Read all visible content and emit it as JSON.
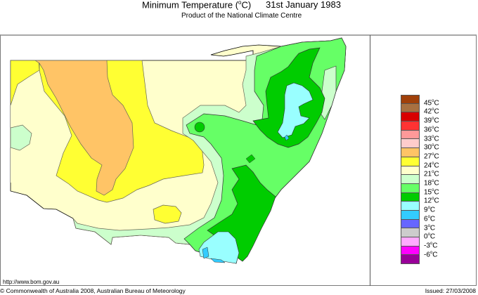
{
  "header": {
    "title_prefix": "Minimum Temperature (",
    "title_degree": "o",
    "title_suffix": "C)",
    "date": "31st January 1983",
    "subtitle": "Product of the National Climate Centre"
  },
  "map": {
    "region": "New South Wales",
    "variable": "Minimum Temperature",
    "unit": "°C"
  },
  "legend": {
    "swatches": [
      {
        "color": "#a0400a",
        "range": "above 45"
      },
      {
        "color": "#a87040",
        "range": "42-45"
      },
      {
        "color": "#d80000",
        "range": "39-42"
      },
      {
        "color": "#ff3333",
        "range": "36-39"
      },
      {
        "color": "#ff9999",
        "range": "33-36"
      },
      {
        "color": "#ffcccc",
        "range": "30-33"
      },
      {
        "color": "#ffc466",
        "range": "27-30"
      },
      {
        "color": "#ffff33",
        "range": "24-27"
      },
      {
        "color": "#ffffcc",
        "range": "21-24"
      },
      {
        "color": "#ccffcc",
        "range": "18-21"
      },
      {
        "color": "#66ff66",
        "range": "15-18"
      },
      {
        "color": "#00cc00",
        "range": "12-15"
      },
      {
        "color": "#99ffff",
        "range": "9-12"
      },
      {
        "color": "#33ccff",
        "range": "6-9"
      },
      {
        "color": "#6666ff",
        "range": "3-6"
      },
      {
        "color": "#cccccc",
        "range": "0-3"
      },
      {
        "color": "#ffaaff",
        "range": "-3-0"
      },
      {
        "color": "#ff00ff",
        "range": "-6--3"
      },
      {
        "color": "#990099",
        "range": "below -6"
      }
    ],
    "labels": [
      "45",
      "42",
      "39",
      "36",
      "33",
      "30",
      "27",
      "24",
      "21",
      "18",
      "15",
      "12",
      "9",
      "6",
      "3",
      "0",
      "-3",
      "-6"
    ],
    "unit_degree": "o",
    "unit_letter": "C"
  },
  "footer": {
    "url": "http://www.bom.gov.au",
    "copyright": "© Commonwealth of Australia 2008, Australian Bureau of Meteorology",
    "issued": "Issued: 27/03/2008"
  }
}
